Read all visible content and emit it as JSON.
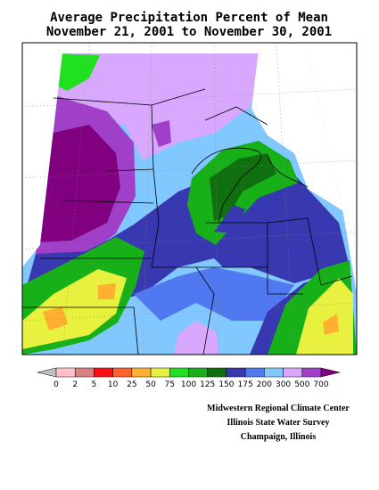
{
  "header": {
    "title": "Average Precipitation Percent of Mean",
    "subtitle": "November 21, 2001 to November 30, 2001"
  },
  "legend": {
    "labels": [
      "0",
      "2",
      "5",
      "10",
      "25",
      "50",
      "75",
      "100",
      "125",
      "150",
      "175",
      "200",
      "300",
      "500",
      "700"
    ],
    "low_color": "#c0c0c0",
    "colors": [
      "#ffc0cb",
      "#d88080",
      "#ff1010",
      "#ff6030",
      "#ffb030",
      "#e8f040",
      "#20e020",
      "#18b018",
      "#107010",
      "#3838b0",
      "#5078f0",
      "#80c8ff",
      "#d8a8ff",
      "#a040c8"
    ],
    "high_color": "#800080"
  },
  "credits": [
    "Midwestern Regional Climate Center",
    "Illinois State Water Survey",
    "Champaign, Illinois"
  ]
}
